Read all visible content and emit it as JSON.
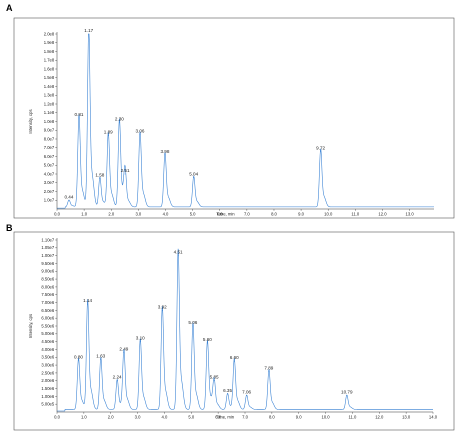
{
  "chart_data": [
    {
      "type": "line",
      "panel_label": "A",
      "xlabel": "Time, min",
      "ylabel": "Intensity, cps",
      "xlim": [
        0,
        13.9
      ],
      "ylim": [
        0,
        200000000.0
      ],
      "x_ticks": [
        "0.0",
        "1.0",
        "2.0",
        "3.0",
        "4.0",
        "5.0",
        "6.0",
        "7.0",
        "8.0",
        "9.0",
        "10.0",
        "11.0",
        "12.0",
        "13.0"
      ],
      "y_ticks": [
        {
          "label": "1.0e7",
          "value": 10000000.0
        },
        {
          "label": "2.0e7",
          "value": 20000000.0
        },
        {
          "label": "3.0e7",
          "value": 30000000.0
        },
        {
          "label": "4.0e7",
          "value": 40000000.0
        },
        {
          "label": "5.0e7",
          "value": 50000000.0
        },
        {
          "label": "6.0e7",
          "value": 60000000.0
        },
        {
          "label": "7.0e7",
          "value": 70000000.0
        },
        {
          "label": "8.0e7",
          "value": 80000000.0
        },
        {
          "label": "9.0e7",
          "value": 90000000.0
        },
        {
          "label": "1.0e8",
          "value": 100000000.0
        },
        {
          "label": "1.1e8",
          "value": 110000000.0
        },
        {
          "label": "1.2e8",
          "value": 120000000.0
        },
        {
          "label": "1.3e8",
          "value": 130000000.0
        },
        {
          "label": "1.4e8",
          "value": 140000000.0
        },
        {
          "label": "1.5e8",
          "value": 150000000.0
        },
        {
          "label": "1.6e8",
          "value": 160000000.0
        },
        {
          "label": "1.7e8",
          "value": 170000000.0
        },
        {
          "label": "1.8e8",
          "value": 180000000.0
        },
        {
          "label": "1.9e8",
          "value": 190000000.0
        },
        {
          "label": "2.0e8",
          "value": 200000000.0
        }
      ],
      "peaks": [
        {
          "label": "0.44",
          "x": 0.44,
          "y": 10000000.0
        },
        {
          "label": "0.81",
          "x": 0.81,
          "y": 104000000.0
        },
        {
          "label": "1.17",
          "x": 1.17,
          "y": 200000000.0
        },
        {
          "label": "1.58",
          "x": 1.58,
          "y": 35000000.0
        },
        {
          "label": "1.89",
          "x": 1.89,
          "y": 84000000.0
        },
        {
          "label": "2.30",
          "x": 2.3,
          "y": 99000000.0
        },
        {
          "label": "2.51",
          "x": 2.51,
          "y": 40000000.0
        },
        {
          "label": "3.06",
          "x": 3.06,
          "y": 85000000.0
        },
        {
          "label": "3.98",
          "x": 3.98,
          "y": 62000000.0
        },
        {
          "label": "5.04",
          "x": 5.04,
          "y": 36000000.0
        },
        {
          "label": "9.72",
          "x": 9.72,
          "y": 66000000.0
        }
      ]
    },
    {
      "type": "line",
      "panel_label": "B",
      "xlabel": "Time, min",
      "ylabel": "Intensity, cps",
      "xlim": [
        0,
        14.0
      ],
      "ylim": [
        0,
        11000000.0
      ],
      "x_ticks": [
        "0.0",
        "1.0",
        "2.0",
        "3.0",
        "4.0",
        "5.0",
        "6.0",
        "7.0",
        "8.0",
        "9.0",
        "10.0",
        "11.0",
        "12.0",
        "13.0",
        "14.0"
      ],
      "y_ticks": [
        {
          "label": "5.00e5",
          "value": 500000.0
        },
        {
          "label": "1.00e6",
          "value": 1000000.0
        },
        {
          "label": "1.50e6",
          "value": 1500000.0
        },
        {
          "label": "2.00e6",
          "value": 2000000.0
        },
        {
          "label": "2.50e6",
          "value": 2500000.0
        },
        {
          "label": "3.00e6",
          "value": 3000000.0
        },
        {
          "label": "3.50e6",
          "value": 3500000.0
        },
        {
          "label": "4.00e6",
          "value": 4000000.0
        },
        {
          "label": "4.50e6",
          "value": 4500000.0
        },
        {
          "label": "5.00e6",
          "value": 5000000.0
        },
        {
          "label": "5.50e6",
          "value": 5500000.0
        },
        {
          "label": "6.00e6",
          "value": 6000000.0
        },
        {
          "label": "6.50e6",
          "value": 6500000.0
        },
        {
          "label": "7.00e6",
          "value": 7000000.0
        },
        {
          "label": "7.50e6",
          "value": 7500000.0
        },
        {
          "label": "8.00e6",
          "value": 8000000.0
        },
        {
          "label": "8.50e6",
          "value": 8500000.0
        },
        {
          "label": "9.00e6",
          "value": 9000000.0
        },
        {
          "label": "9.50e6",
          "value": 9500000.0
        },
        {
          "label": "1.00e7",
          "value": 10000000.0
        },
        {
          "label": "1.05e7",
          "value": 10500000.0
        },
        {
          "label": "1.10e7",
          "value": 11000000.0
        }
      ],
      "peaks": [
        {
          "label": "0.80",
          "x": 0.8,
          "y": 3300000.0
        },
        {
          "label": "1.14",
          "x": 1.14,
          "y": 6900000.0
        },
        {
          "label": "1.63",
          "x": 1.63,
          "y": 3350000.0
        },
        {
          "label": "2.24",
          "x": 2.24,
          "y": 2000000.0
        },
        {
          "label": "2.49",
          "x": 2.49,
          "y": 3800000.0
        },
        {
          "label": "3.10",
          "x": 3.1,
          "y": 4500000.0
        },
        {
          "label": "3.92",
          "x": 3.92,
          "y": 6500000.0
        },
        {
          "label": "4.51",
          "x": 4.51,
          "y": 10000000.0
        },
        {
          "label": "5.06",
          "x": 5.06,
          "y": 5500000.0
        },
        {
          "label": "5.60",
          "x": 5.6,
          "y": 4400000.0
        },
        {
          "label": "5.85",
          "x": 5.85,
          "y": 2000000.0
        },
        {
          "label": "6.35",
          "x": 6.35,
          "y": 1150000.0
        },
        {
          "label": "6.60",
          "x": 6.6,
          "y": 3250000.0
        },
        {
          "label": "7.06",
          "x": 7.06,
          "y": 1050000.0
        },
        {
          "label": "7.89",
          "x": 7.89,
          "y": 2600000.0
        },
        {
          "label": "10.79",
          "x": 10.79,
          "y": 1050000.0
        }
      ]
    }
  ],
  "colors": {
    "trace": "#2e7bd1",
    "frame": "#555555",
    "text": "#222222"
  }
}
